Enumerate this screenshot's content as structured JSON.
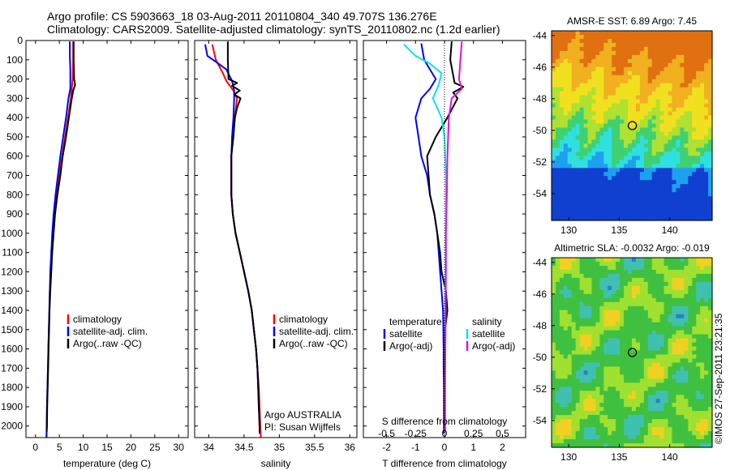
{
  "header": {
    "line1": "Argo profile: CS 5903663_18 03-Aug-2011 20110804_340 49.707S 136.276E",
    "line2": "Climatology: CARS2009. Satellite-adjusted climatology: synTS_20110802.nc (1.2d earlier)"
  },
  "colors": {
    "climatology": "#ff0000",
    "satellite": "#0000ff",
    "argo": "#000000",
    "salinity_satellite": "#00e5ee",
    "salinity_argo": "#e010e0"
  },
  "chart_data": [
    {
      "id": "temperature",
      "type": "line",
      "xlabel": "temperature (deg C)",
      "ylabel": "",
      "xlim": [
        -2,
        32
      ],
      "ylim": [
        2060,
        0
      ],
      "xticks": [
        "0",
        "5",
        "10",
        "15",
        "20",
        "25",
        "30"
      ],
      "yticks": [
        "0",
        "100",
        "200",
        "300",
        "400",
        "500",
        "600",
        "700",
        "800",
        "900",
        "1000",
        "1100",
        "1200",
        "1300",
        "1400",
        "1500",
        "1600",
        "1700",
        "1800",
        "1900",
        "2000"
      ],
      "legend": [
        "climatology",
        "satellite-adj. clim.",
        "Argo(..raw -QC)"
      ],
      "series": [
        {
          "name": "climatology",
          "color": "#ff0000",
          "points": [
            [
              7.9,
              5
            ],
            [
              7.9,
              100
            ],
            [
              7.8,
              200
            ],
            [
              7.4,
              300
            ],
            [
              6.8,
              400
            ],
            [
              6.2,
              500
            ],
            [
              5.6,
              600
            ],
            [
              5.0,
              700
            ],
            [
              4.5,
              800
            ],
            [
              4.0,
              900
            ],
            [
              3.7,
              1000
            ],
            [
              3.4,
              1100
            ],
            [
              3.2,
              1200
            ],
            [
              3.0,
              1300
            ],
            [
              2.9,
              1400
            ],
            [
              2.8,
              1500
            ],
            [
              2.7,
              1600
            ],
            [
              2.6,
              1700
            ],
            [
              2.5,
              1800
            ],
            [
              2.4,
              1900
            ],
            [
              2.35,
              2000
            ],
            [
              2.3,
              2060
            ]
          ]
        },
        {
          "name": "satellite-adj. clim.",
          "color": "#0000ff",
          "points": [
            [
              7.2,
              5
            ],
            [
              7.2,
              80
            ],
            [
              7.3,
              150
            ],
            [
              7.3,
              250
            ],
            [
              6.9,
              300
            ],
            [
              6.4,
              400
            ],
            [
              5.8,
              500
            ],
            [
              5.2,
              600
            ],
            [
              4.7,
              700
            ],
            [
              4.2,
              800
            ],
            [
              3.8,
              900
            ],
            [
              3.5,
              1000
            ],
            [
              3.3,
              1100
            ],
            [
              3.1,
              1200
            ],
            [
              3.0,
              1300
            ],
            [
              2.9,
              1400
            ],
            [
              2.8,
              1500
            ],
            [
              2.7,
              1600
            ],
            [
              2.6,
              1700
            ],
            [
              2.5,
              1800
            ],
            [
              2.4,
              1900
            ],
            [
              2.35,
              2000
            ],
            [
              2.3,
              2060
            ]
          ]
        },
        {
          "name": "Argo(..raw -QC)",
          "color": "#000000",
          "points": [
            [
              8.0,
              5
            ],
            [
              8.0,
              100
            ],
            [
              8.1,
              200
            ],
            [
              8.3,
              230
            ],
            [
              7.9,
              260
            ],
            [
              7.6,
              300
            ],
            [
              7.0,
              400
            ],
            [
              6.4,
              500
            ],
            [
              5.7,
              600
            ],
            [
              5.2,
              700
            ],
            [
              4.6,
              800
            ],
            [
              4.1,
              900
            ],
            [
              3.8,
              1000
            ],
            [
              3.5,
              1100
            ],
            [
              3.3,
              1200
            ],
            [
              3.1,
              1300
            ],
            [
              2.95,
              1400
            ],
            [
              2.85,
              1500
            ],
            [
              2.75,
              1600
            ],
            [
              2.65,
              1700
            ],
            [
              2.55,
              1800
            ],
            [
              2.45,
              1900
            ],
            [
              2.4,
              2000
            ],
            [
              2.35,
              2030
            ]
          ]
        }
      ]
    },
    {
      "id": "salinity",
      "type": "line",
      "xlabel": "salinity",
      "xlim": [
        33.8,
        36.1
      ],
      "ylim": [
        2060,
        0
      ],
      "xticks": [
        "34",
        "34.5",
        "35",
        "35.5",
        "36"
      ],
      "legend": [
        "climatology",
        "satellite-adj. clim.",
        "Argo(..raw -QC)"
      ],
      "annotation": [
        "Argo AUSTRALIA",
        "PI: Susan Wijffels"
      ],
      "series": [
        {
          "name": "climatology",
          "color": "#ff0000",
          "points": [
            [
              34.05,
              20
            ],
            [
              34.1,
              100
            ],
            [
              34.2,
              170
            ],
            [
              34.25,
              210
            ],
            [
              34.35,
              260
            ],
            [
              34.4,
              300
            ],
            [
              34.37,
              400
            ],
            [
              34.34,
              500
            ],
            [
              34.32,
              600
            ],
            [
              34.32,
              700
            ],
            [
              34.32,
              800
            ],
            [
              34.34,
              900
            ],
            [
              34.38,
              1000
            ],
            [
              34.44,
              1100
            ],
            [
              34.5,
              1200
            ],
            [
              34.56,
              1300
            ],
            [
              34.61,
              1400
            ],
            [
              34.64,
              1500
            ],
            [
              34.67,
              1600
            ],
            [
              34.69,
              1700
            ],
            [
              34.71,
              1800
            ],
            [
              34.72,
              1900
            ],
            [
              34.73,
              2000
            ],
            [
              34.74,
              2060
            ]
          ]
        },
        {
          "name": "satellite-adj. clim.",
          "color": "#0000ff",
          "points": [
            [
              33.95,
              20
            ],
            [
              33.98,
              80
            ],
            [
              34.1,
              110
            ],
            [
              34.25,
              150
            ],
            [
              34.33,
              210
            ],
            [
              34.36,
              260
            ],
            [
              34.36,
              300
            ],
            [
              34.35,
              400
            ],
            [
              34.33,
              500
            ],
            [
              34.32,
              600
            ],
            [
              34.32,
              700
            ],
            [
              34.32,
              800
            ],
            [
              34.34,
              900
            ],
            [
              34.38,
              1000
            ],
            [
              34.44,
              1100
            ],
            [
              34.5,
              1200
            ],
            [
              34.56,
              1300
            ],
            [
              34.61,
              1400
            ],
            [
              34.64,
              1500
            ],
            [
              34.67,
              1600
            ],
            [
              34.69,
              1700
            ],
            [
              34.7,
              1800
            ],
            [
              34.71,
              1900
            ],
            [
              34.72,
              2000
            ],
            [
              34.72,
              2040
            ]
          ]
        },
        {
          "name": "Argo(..raw -QC)",
          "color": "#000000",
          "points": [
            [
              34.27,
              5
            ],
            [
              34.27,
              100
            ],
            [
              34.28,
              200
            ],
            [
              34.4,
              220
            ],
            [
              34.33,
              235
            ],
            [
              34.44,
              260
            ],
            [
              34.36,
              280
            ],
            [
              34.45,
              300
            ],
            [
              34.4,
              350
            ],
            [
              34.37,
              400
            ],
            [
              34.35,
              500
            ],
            [
              34.32,
              600
            ],
            [
              34.32,
              700
            ],
            [
              34.32,
              800
            ],
            [
              34.34,
              900
            ],
            [
              34.38,
              1000
            ],
            [
              34.44,
              1100
            ],
            [
              34.5,
              1200
            ],
            [
              34.56,
              1300
            ],
            [
              34.61,
              1400
            ],
            [
              34.64,
              1500
            ],
            [
              34.67,
              1600
            ],
            [
              34.69,
              1700
            ],
            [
              34.7,
              1800
            ],
            [
              34.71,
              1900
            ],
            [
              34.72,
              2000
            ],
            [
              34.72,
              2030
            ]
          ]
        }
      ]
    },
    {
      "id": "difference",
      "type": "line",
      "xlabel": "T difference from climatology",
      "xlabel_top": "S difference from climatology",
      "xlim": [
        -2.8,
        2.8
      ],
      "ylim": [
        2060,
        0
      ],
      "xticks": [
        "-2",
        "-1",
        "0",
        "1",
        "2"
      ],
      "xticks_top": [
        "-0.5",
        "-0.25",
        "0",
        "0.25",
        "0.5"
      ],
      "legend_temperature_title": "temperature",
      "legend_salinity_title": "salinity",
      "legend_temperature": [
        "satellite",
        "Argo(-adj)"
      ],
      "legend_salinity": [
        "satellite",
        "Argo(-adj)"
      ],
      "series": [
        {
          "name": "satellite",
          "color": "#0000ff",
          "points": [
            [
              -0.8,
              15
            ],
            [
              -0.7,
              100
            ],
            [
              -0.5,
              150
            ],
            [
              -0.3,
              200
            ],
            [
              -0.5,
              250
            ],
            [
              -0.8,
              300
            ],
            [
              -1.0,
              400
            ],
            [
              -0.9,
              500
            ],
            [
              -0.8,
              600
            ],
            [
              -0.6,
              700
            ],
            [
              -0.5,
              800
            ],
            [
              -0.35,
              900
            ],
            [
              -0.25,
              1000
            ],
            [
              -0.2,
              1100
            ],
            [
              -0.15,
              1200
            ],
            [
              -0.1,
              1300
            ],
            [
              -0.05,
              1400
            ],
            [
              -0.04,
              1500
            ],
            [
              -0.03,
              1600
            ],
            [
              -0.03,
              1700
            ],
            [
              -0.02,
              1800
            ],
            [
              -0.02,
              1900
            ],
            [
              -0.02,
              2000
            ],
            [
              -0.02,
              2040
            ]
          ]
        },
        {
          "name": "Argo(-adj)",
          "color": "#000000",
          "points": [
            [
              0.25,
              5
            ],
            [
              0.2,
              100
            ],
            [
              0.35,
              220
            ],
            [
              0.65,
              240
            ],
            [
              0.3,
              270
            ],
            [
              0.45,
              300
            ],
            [
              0.1,
              400
            ],
            [
              -0.3,
              500
            ],
            [
              -0.6,
              600
            ],
            [
              -0.55,
              700
            ],
            [
              -0.5,
              800
            ],
            [
              -0.35,
              900
            ],
            [
              -0.25,
              1000
            ],
            [
              -0.15,
              1100
            ],
            [
              -0.1,
              1200
            ],
            [
              0.05,
              1300
            ],
            [
              0.1,
              1400
            ],
            [
              0.02,
              1500
            ],
            [
              0.0,
              1600
            ],
            [
              0.0,
              1700
            ],
            [
              0.0,
              1800
            ],
            [
              0.0,
              1900
            ],
            [
              0.0,
              2000
            ],
            [
              0.0,
              2030
            ]
          ]
        },
        {
          "name": "salinity satellite",
          "color": "#00e5ee",
          "points": [
            [
              -1.4,
              20
            ],
            [
              -1.0,
              80
            ],
            [
              -0.5,
              120
            ],
            [
              -0.1,
              170
            ],
            [
              -0.2,
              230
            ],
            [
              -0.4,
              300
            ],
            [
              -0.1,
              400
            ],
            [
              0.0,
              500
            ],
            [
              0.05,
              700
            ],
            [
              0.05,
              900
            ],
            [
              0.04,
              1100
            ],
            [
              0.03,
              1300
            ],
            [
              0.02,
              1500
            ],
            [
              0.02,
              1700
            ],
            [
              0.02,
              1900
            ],
            [
              0.02,
              2040
            ]
          ]
        },
        {
          "name": "salinity Argo(-adj)",
          "color": "#e010e0",
          "points": [
            [
              0.6,
              5
            ],
            [
              0.55,
              100
            ],
            [
              0.5,
              200
            ],
            [
              0.6,
              250
            ],
            [
              0.25,
              300
            ],
            [
              0.15,
              400
            ],
            [
              0.1,
              600
            ],
            [
              0.08,
              800
            ],
            [
              0.05,
              1000
            ],
            [
              0.05,
              1200
            ],
            [
              0.04,
              1400
            ],
            [
              0.03,
              1600
            ],
            [
              0.02,
              1800
            ],
            [
              0.02,
              2030
            ]
          ]
        }
      ]
    },
    {
      "id": "sst-map",
      "type": "heatmap",
      "title": "AMSR-E SST: 6.89 Argo: 7.45",
      "xticks": [
        "130",
        "135",
        "140"
      ],
      "yticks": [
        "-44",
        "-46",
        "-48",
        "-50",
        "-52",
        "-54"
      ],
      "xlim": [
        128.3,
        144.2
      ],
      "ylim": [
        -55.7,
        -43.7
      ],
      "marker": [
        136.3,
        -49.7
      ]
    },
    {
      "id": "sla-map",
      "type": "heatmap",
      "title": "Altimetric SLA: -0.0032 Argo: -0.019",
      "xticks": [
        "130",
        "135",
        "140"
      ],
      "yticks": [
        "-44",
        "-46",
        "-48",
        "-50",
        "-52",
        "-54"
      ],
      "xlim": [
        128.3,
        144.2
      ],
      "ylim": [
        -55.7,
        -43.7
      ],
      "marker": [
        136.3,
        -49.7
      ]
    }
  ],
  "credit": "©IMOS 27-Sep-2011 23:21:35"
}
